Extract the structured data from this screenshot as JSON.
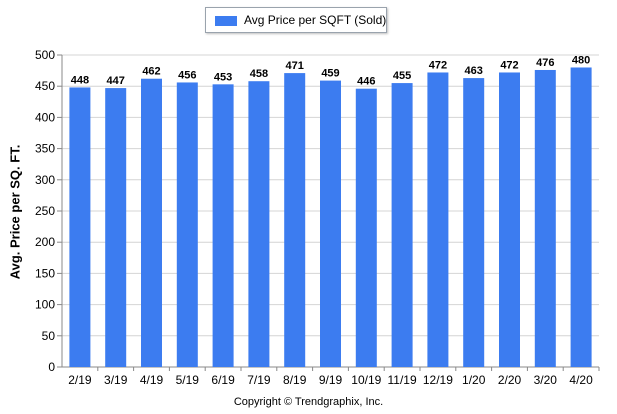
{
  "legend": {
    "label": "Avg Price per SQFT (Sold)"
  },
  "footer": {
    "copyright": "Copyright © Trendgraphix, Inc."
  },
  "chart_data": {
    "type": "bar",
    "title": "",
    "xlabel": "",
    "ylabel": "Avg. Price per SQ. FT.",
    "ylim": [
      0,
      500
    ],
    "yticks": [
      0,
      50,
      100,
      150,
      200,
      250,
      300,
      350,
      400,
      450,
      500
    ],
    "grid": true,
    "legend_position": "top-center",
    "bar_color": "#3c7cf0",
    "categories": [
      "2/19",
      "3/19",
      "4/19",
      "5/19",
      "6/19",
      "7/19",
      "8/19",
      "9/19",
      "10/19",
      "11/19",
      "12/19",
      "1/20",
      "2/20",
      "3/20",
      "4/20"
    ],
    "series": [
      {
        "name": "Avg Price per SQFT (Sold)",
        "values": [
          448,
          447,
          462,
          456,
          453,
          458,
          471,
          459,
          446,
          455,
          472,
          463,
          472,
          476,
          480
        ]
      }
    ]
  }
}
